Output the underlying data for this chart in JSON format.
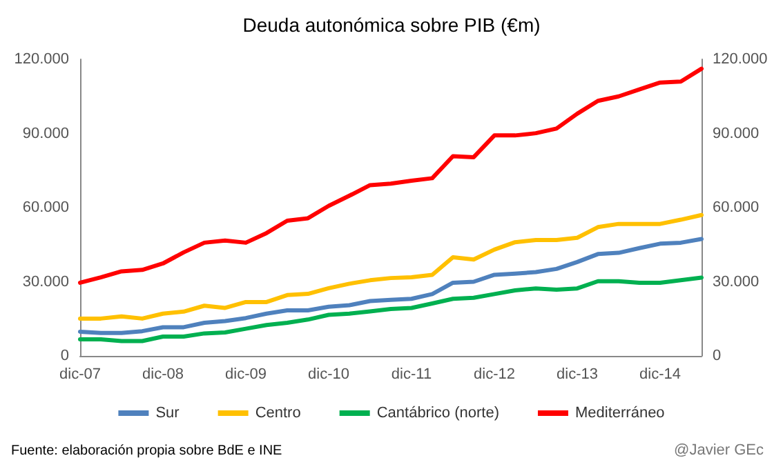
{
  "chart_data": {
    "type": "line",
    "title": "Deuda autonómica sobre PIB (€m)",
    "categories": [
      "dic-07",
      null,
      null,
      null,
      "dic-08",
      null,
      null,
      null,
      "dic-09",
      null,
      null,
      null,
      "dic-10",
      null,
      null,
      null,
      "dic-11",
      null,
      null,
      null,
      "dic-12",
      null,
      null,
      null,
      "dic-13",
      null,
      null,
      null,
      "dic-14",
      null,
      null
    ],
    "series": [
      {
        "name": "Sur",
        "color": "#4f81bd",
        "values": [
          9800,
          9300,
          9300,
          10000,
          11600,
          11600,
          13400,
          14100,
          15300,
          17100,
          18400,
          18400,
          19900,
          20500,
          22200,
          22700,
          23100,
          25000,
          29600,
          30000,
          32800,
          33300,
          33900,
          35200,
          38000,
          41200,
          41700,
          43600,
          45400,
          45800,
          47300
        ]
      },
      {
        "name": "Centro",
        "color": "#ffc000",
        "values": [
          15100,
          15100,
          16000,
          15100,
          17100,
          17900,
          20300,
          19400,
          21800,
          21800,
          24600,
          25100,
          27400,
          29200,
          30600,
          31500,
          31800,
          32800,
          39900,
          39000,
          43000,
          46000,
          46900,
          46900,
          47800,
          52100,
          53400,
          53400,
          53400,
          55100,
          57000
        ]
      },
      {
        "name": "Cantábrico (norte)",
        "color": "#00b050",
        "values": [
          6700,
          6700,
          6000,
          6000,
          7800,
          7800,
          9100,
          9500,
          11000,
          12500,
          13400,
          14700,
          16600,
          17100,
          18000,
          19000,
          19400,
          21200,
          23100,
          23500,
          25000,
          26500,
          27300,
          26800,
          27300,
          30200,
          30200,
          29600,
          29600,
          30600,
          31700
        ]
      },
      {
        "name": "Mediterráneo",
        "color": "#ff0000",
        "values": [
          29600,
          31800,
          34200,
          34800,
          37400,
          41900,
          45800,
          46700,
          45800,
          49700,
          54700,
          55700,
          60700,
          64800,
          69100,
          69700,
          70900,
          71900,
          80800,
          80400,
          89200,
          89200,
          90100,
          92000,
          98000,
          103200,
          105000,
          107800,
          110600,
          111000,
          116200
        ]
      }
    ],
    "ylim": [
      0,
      120000
    ],
    "yticks": [
      {
        "value": 0,
        "label": "0"
      },
      {
        "value": 30000,
        "label": "30.000"
      },
      {
        "value": 60000,
        "label": "60.000"
      },
      {
        "value": 90000,
        "label": "90.000"
      },
      {
        "value": 120000,
        "label": "120.000"
      }
    ],
    "y2lim": [
      0,
      120000
    ],
    "y2ticks": [
      {
        "value": 0,
        "label": "0"
      },
      {
        "value": 30000,
        "label": "30.000"
      },
      {
        "value": 60000,
        "label": "60.000"
      },
      {
        "value": 90000,
        "label": "90.000"
      },
      {
        "value": 120000,
        "label": "120.000"
      }
    ],
    "legend": "bottom",
    "marker": "none",
    "line_style": "solid",
    "grid": false,
    "annotations": [
      "Fuente: elaboración propia sobre BdE e INE",
      "@Javier GEc"
    ]
  }
}
